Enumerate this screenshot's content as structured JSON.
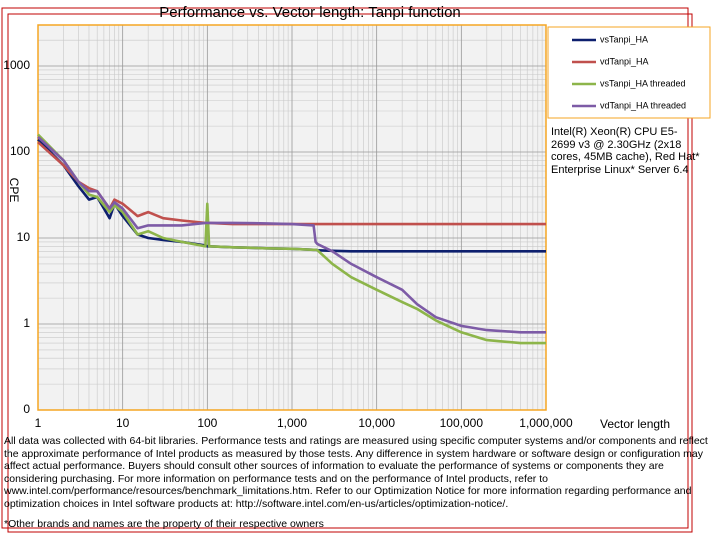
{
  "chart_data": {
    "type": "line",
    "title": "Performance vs. Vector length: Tanpi function",
    "x_label": "Vector length",
    "y_label": "CPE",
    "log_x": true,
    "log_y": true,
    "grid": true,
    "legend_position": "upper right",
    "annotation": "Intel(R) Xeon(R) CPU E5-2699 v3 @ 2.30GHz (2x18 cores, 45MB cache), Red Hat* Enterprise Linux* Server 6.4",
    "x": [
      1,
      2,
      3,
      4,
      5,
      7,
      8,
      10,
      15,
      20,
      30,
      50,
      95,
      100,
      105,
      200,
      500,
      1000,
      1800,
      1900,
      2000,
      3000,
      5000,
      10000,
      20000,
      30000,
      50000,
      100000,
      200000,
      500000,
      1000000
    ],
    "series": [
      {
        "name": "vsTanpi_HA",
        "color": "#0d1f6e",
        "values": [
          140,
          70,
          40,
          28,
          30,
          17,
          25,
          18,
          11,
          10,
          9.5,
          9,
          8.2,
          8,
          8,
          7.8,
          7.6,
          7.5,
          7.3,
          7.3,
          7.2,
          7.1,
          7.0,
          7.0,
          7.0,
          7.0,
          7.0,
          7.0,
          7.0,
          7.0,
          7.0
        ]
      },
      {
        "name": "vdTanpi_HA",
        "color": "#c0504d",
        "values": [
          130,
          70,
          45,
          38,
          35,
          22,
          28,
          25,
          18,
          20,
          17,
          16,
          15,
          15,
          15,
          14.5,
          14.5,
          14.5,
          14.5,
          14.5,
          14.5,
          14.5,
          14.5,
          14.5,
          14.5,
          14.5,
          14.5,
          14.5,
          14.5,
          14.5,
          14.5
        ]
      },
      {
        "name": "vsTanpi_HA threaded",
        "color": "#8db54a",
        "values": [
          160,
          80,
          45,
          32,
          30,
          20,
          24,
          20,
          11,
          12,
          10,
          9,
          8,
          25,
          8,
          7.8,
          7.6,
          7.5,
          7.3,
          7.3,
          7.2,
          5,
          3.5,
          2.5,
          1.8,
          1.5,
          1.1,
          0.8,
          0.65,
          0.6,
          0.6
        ]
      },
      {
        "name": "vdTanpi_HA threaded",
        "color": "#7d5ba6",
        "values": [
          150,
          80,
          45,
          35,
          35,
          22,
          26,
          22,
          13,
          14,
          14,
          14,
          15,
          15,
          15,
          15,
          14.8,
          14.5,
          14,
          9,
          8.5,
          7,
          5,
          3.5,
          2.5,
          1.7,
          1.2,
          0.95,
          0.85,
          0.8,
          0.8
        ]
      }
    ],
    "xlim": [
      1,
      1000000
    ],
    "xticks": [
      1,
      10,
      100,
      {
        "value": 1000,
        "label": "1,000"
      },
      {
        "value": 10000,
        "label": "10,000"
      },
      {
        "value": 100000,
        "label": "100,000"
      },
      {
        "value": 1000000,
        "label": "1,000,000"
      }
    ],
    "ylim": [
      0.1,
      3000
    ],
    "yticks": [
      {
        "value": 0.1,
        "label": "0"
      },
      1,
      10,
      100,
      1000
    ],
    "footnote": "All data was collected with 64-bit libraries. Performance tests and ratings are measured using specific computer systems and/or components and reflect the approximate performance of Intel products as measured by those tests. Any difference in system hardware or software design or configuration may affect actual performance. Buyers should consult other sources of information to evaluate the performance of systems or components they are considering purchasing. For more information on performance tests and on the performance of Intel products, refer to www.intel.com/performance/resources/benchmark_limitations.htm. Refer to our Optimization Notice for more information regarding performance and optimization choices in Intel software products at: http://software.intel.com/en-us/articles/optimization-notice/.",
    "footnote2": "*Other brands and names are the property of their respective owners"
  }
}
